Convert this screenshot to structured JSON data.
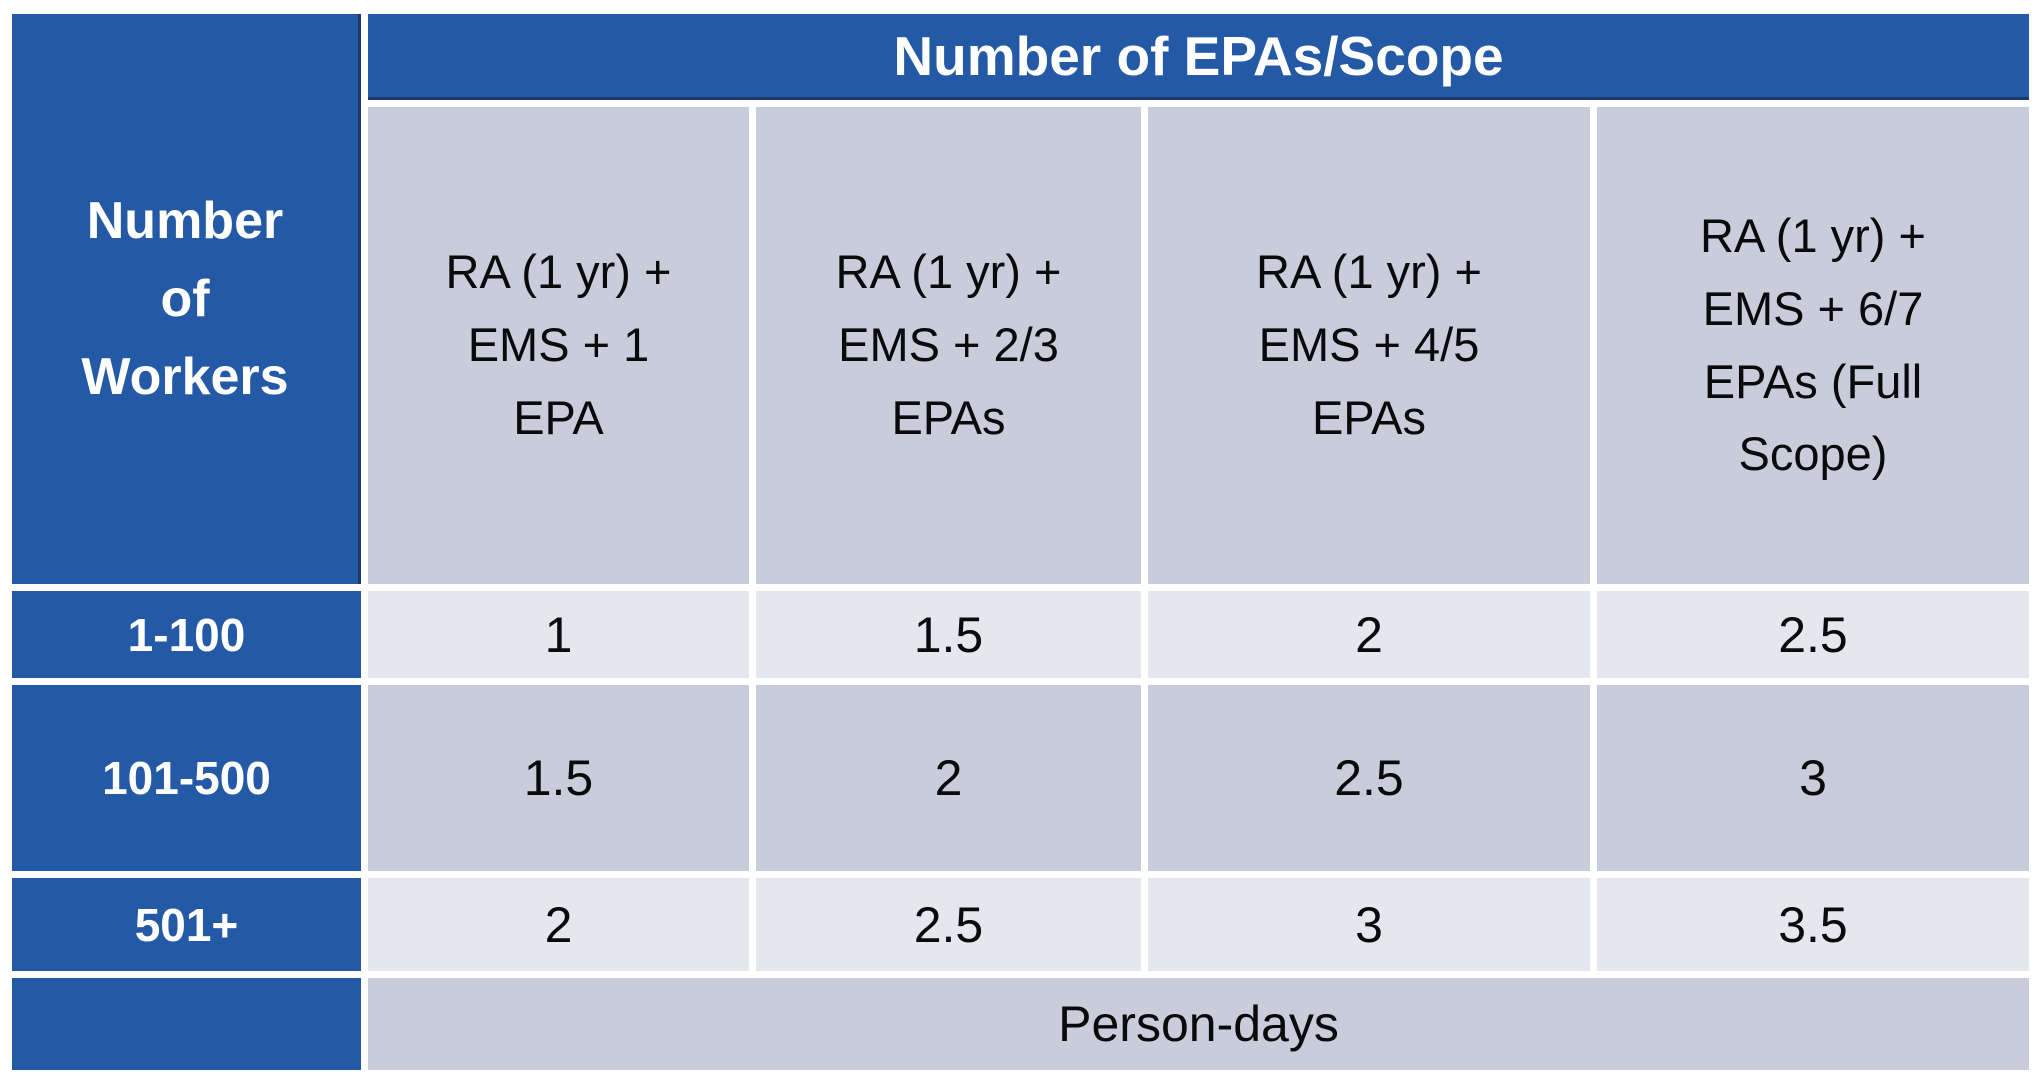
{
  "chart_data": {
    "type": "table",
    "title": "Number of EPAs/Scope",
    "row_axis_label": "Number of Workers",
    "columns": [
      "RA (1 yr) + EMS + 1 EPA",
      "RA (1 yr) + EMS + 2/3 EPAs",
      "RA (1 yr) + EMS + 4/5 EPAs",
      "RA (1 yr) + EMS + 6/7 EPAs (Full Scope)"
    ],
    "rows": [
      {
        "label": "1-100",
        "values": [
          1,
          1.5,
          2,
          2.5
        ]
      },
      {
        "label": "101-500",
        "values": [
          1.5,
          2,
          2.5,
          3
        ]
      },
      {
        "label": "501+",
        "values": [
          2,
          2.5,
          3,
          3.5
        ]
      }
    ],
    "units": "Person-days"
  },
  "colors": {
    "blue": "#2459A6",
    "light_row": "#E5E7EE",
    "dark_row": "#C9CDDB",
    "dark_border": "#1C3A6A"
  },
  "table": {
    "corner_header": "Number\nof\nWorkers",
    "span_header": "Number of EPAs/Scope",
    "column_headers": [
      "RA (1 yr) +\nEMS + 1\nEPA",
      "RA (1 yr) +\nEMS + 2/3\nEPAs",
      "RA (1 yr) +\nEMS + 4/5\nEPAs",
      "RA (1 yr) +\nEMS + 6/7\nEPAs (Full\nScope)"
    ],
    "rows": [
      {
        "label": "1-100",
        "values": [
          "1",
          "1.5",
          "2",
          "2.5"
        ]
      },
      {
        "label": "101-500",
        "values": [
          "1.5",
          "2",
          "2.5",
          "3"
        ]
      },
      {
        "label": "501+",
        "values": [
          "2",
          "2.5",
          "3",
          "3.5"
        ]
      }
    ],
    "footer_unit": "Person-days"
  }
}
